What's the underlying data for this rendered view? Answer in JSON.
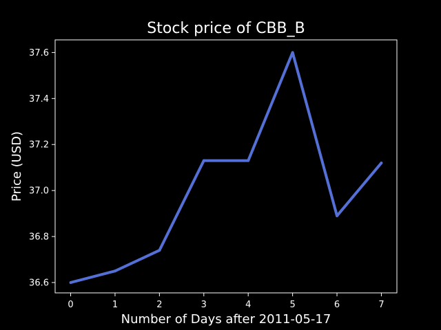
{
  "chart_data": {
    "type": "line",
    "title": "Stock price of CBB_B",
    "xlabel": "Number of Days after 2011-05-17",
    "ylabel": "Price (USD)",
    "x": [
      0,
      1,
      2,
      3,
      4,
      5,
      6,
      7
    ],
    "series": [
      {
        "values": [
          36.6,
          36.65,
          36.74,
          37.13,
          37.13,
          37.6,
          36.89,
          37.12
        ]
      }
    ],
    "xlim": [
      -0.35,
      7.35
    ],
    "ylim": [
      36.555,
      37.655
    ],
    "x_ticks": [
      "0",
      "1",
      "2",
      "3",
      "4",
      "5",
      "6",
      "7"
    ],
    "y_ticks": [
      "36.6",
      "36.8",
      "37.0",
      "37.2",
      "37.4",
      "37.6"
    ],
    "grid": false,
    "colors": {
      "background": "#000000",
      "axes": "#ffffff",
      "line": "#5470d6"
    }
  }
}
